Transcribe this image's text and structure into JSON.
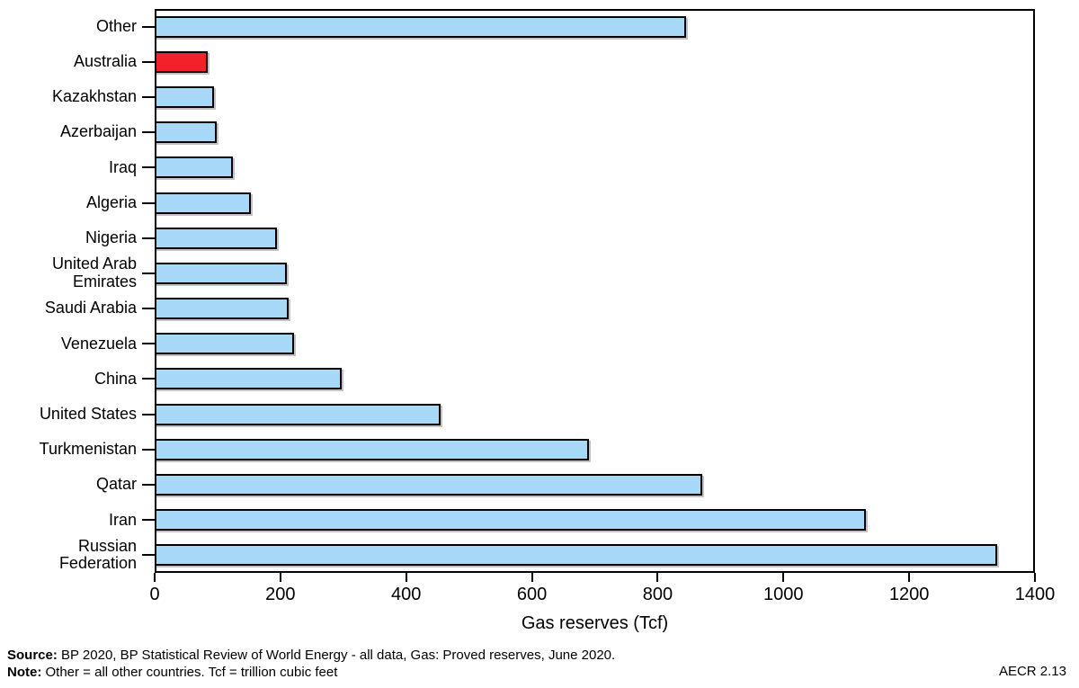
{
  "chart_data": {
    "type": "bar",
    "orientation": "horizontal",
    "title": "",
    "xlabel": "Gas reserves (Tcf)",
    "ylabel": "",
    "xlim": [
      0,
      1400
    ],
    "xticks": [
      0,
      200,
      400,
      600,
      800,
      1000,
      1200,
      1400
    ],
    "grid": false,
    "legend": "none",
    "categories": [
      "Other",
      "Australia",
      "Kazakhstan",
      "Azerbaijan",
      "Iraq",
      "Algeria",
      "Nigeria",
      "United Arab Emirates",
      "Saudi Arabia",
      "Venezuela",
      "China",
      "United States",
      "Turkmenistan",
      "Qatar",
      "Iran",
      "Russian Federation"
    ],
    "values": [
      845,
      85,
      95,
      99,
      125,
      153,
      194,
      210,
      213,
      221,
      297,
      455,
      690,
      871,
      1131,
      1340
    ],
    "unit": "Tcf",
    "highlight_category": "Australia",
    "colors": {
      "bar_fill": "#A8D8F7",
      "bar_highlight": "#F2222A",
      "bar_border": "#000000"
    }
  },
  "footer": {
    "source_label": "Source:",
    "source_text": " BP 2020, BP Statistical Review of World Energy - all data, Gas: Proved reserves, June 2020.",
    "note_label": "Note:",
    "note_text": " Other = all other countries. Tcf = trillion cubic feet",
    "figure_ref": "AECR 2.13"
  }
}
